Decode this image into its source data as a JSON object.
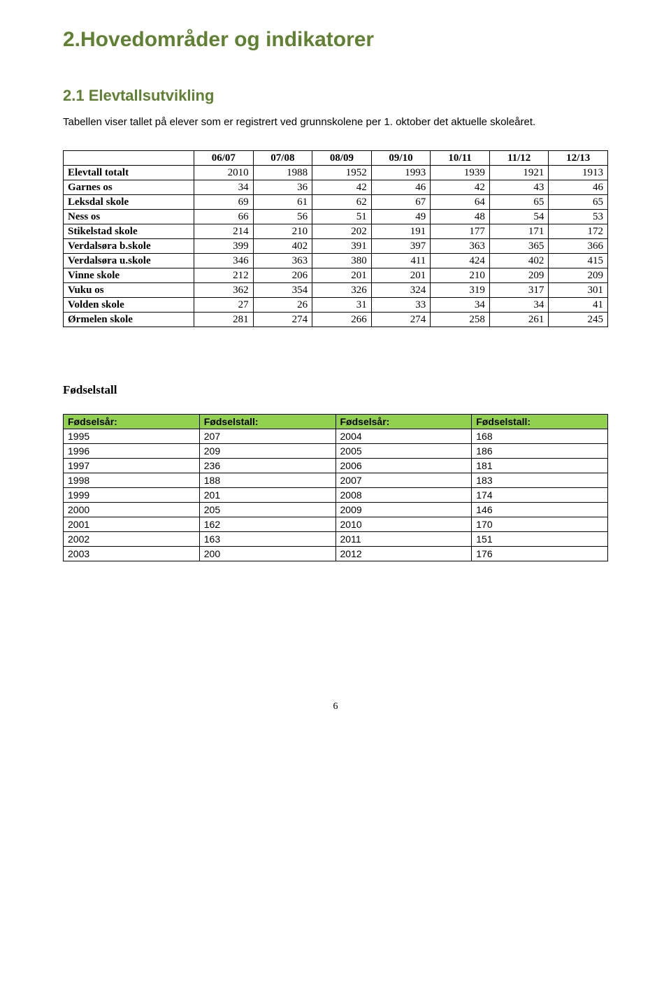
{
  "heading1": "2.Hovedområder og indikatorer",
  "heading2": "2.1 Elevtallsutvikling",
  "intro_text": "Tabellen viser tallet på elever som er registrert ved grunnskolene per 1. oktober det aktuelle skoleåret.",
  "table1": {
    "columns": [
      "",
      "06/07",
      "07/08",
      "08/09",
      "09/10",
      "10/11",
      "11/12",
      "12/13"
    ],
    "rows": [
      [
        "Elevtall totalt",
        "2010",
        "1988",
        "1952",
        "1993",
        "1939",
        "1921",
        "1913"
      ],
      [
        "Garnes os",
        "34",
        "36",
        "42",
        "46",
        "42",
        "43",
        "46"
      ],
      [
        "Leksdal skole",
        "69",
        "61",
        "62",
        "67",
        "64",
        "65",
        "65"
      ],
      [
        "Ness os",
        "66",
        "56",
        "51",
        "49",
        "48",
        "54",
        "53"
      ],
      [
        "Stikelstad skole",
        "214",
        "210",
        "202",
        "191",
        "177",
        "171",
        "172"
      ],
      [
        "Verdalsøra b.skole",
        "399",
        "402",
        "391",
        "397",
        "363",
        "365",
        "366"
      ],
      [
        "Verdalsøra u.skole",
        "346",
        "363",
        "380",
        "411",
        "424",
        "402",
        "415"
      ],
      [
        "Vinne skole",
        "212",
        "206",
        "201",
        "201",
        "210",
        "209",
        "209"
      ],
      [
        "Vuku os",
        "362",
        "354",
        "326",
        "324",
        "319",
        "317",
        "301"
      ],
      [
        "Volden skole",
        "27",
        "26",
        "31",
        "33",
        "34",
        "34",
        "41"
      ],
      [
        "Ørmelen skole",
        "281",
        "274",
        "266",
        "274",
        "258",
        "261",
        "245"
      ]
    ],
    "label_col_width": "24%",
    "val_col_width": "10.85%"
  },
  "section2_title": "Fødselstall",
  "table2": {
    "columns": [
      "Fødselsår:",
      "Fødselstall:",
      "Fødselsår:",
      "Fødselstall:"
    ],
    "header_bg": "#92d050",
    "rows": [
      [
        "1995",
        "207",
        "2004",
        "168"
      ],
      [
        "1996",
        "209",
        "2005",
        "186"
      ],
      [
        "1997",
        "236",
        "2006",
        "181"
      ],
      [
        "1998",
        "188",
        "2007",
        "183"
      ],
      [
        "1999",
        "201",
        "2008",
        "174"
      ],
      [
        "2000",
        "205",
        "2009",
        "146"
      ],
      [
        "2001",
        "162",
        "2010",
        "170"
      ],
      [
        "2002",
        "163",
        "2011",
        "151"
      ],
      [
        "2003",
        "200",
        "2012",
        "176"
      ]
    ]
  },
  "page_number": "6"
}
